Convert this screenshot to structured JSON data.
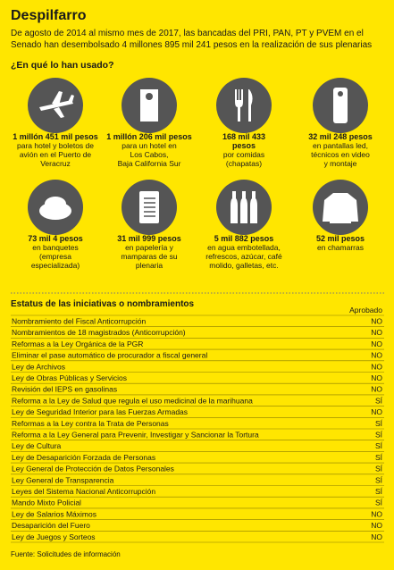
{
  "header": {
    "title": "Despilfarro",
    "subtitle_lines": [
      "De agosto de 2014 al mismo mes de 2017, las bancadas del PRI, PAN, PT y PVEM en el",
      "Senado han desembolsado 4 millones 895 mil 241 pesos en la realización de sus plenarias"
    ]
  },
  "spending": {
    "heading": "¿En qué lo han usado?",
    "items": [
      {
        "amount_lines": [
          "1 millón 451 mil pesos"
        ],
        "description_lines": [
          "para hotel y boletos de",
          "avión en el Puerto de",
          "Veracruz"
        ]
      },
      {
        "amount_lines": [
          "1 millón 206 mil pesos"
        ],
        "description_lines": [
          "para un hotel en",
          "Los Cabos,",
          "Baja California Sur"
        ]
      },
      {
        "amount_lines": [
          "168 mil 433",
          "pesos"
        ],
        "description_lines": [
          "por comidas",
          "(chapatas)"
        ]
      },
      {
        "amount_lines": [
          "32 mil 248 pesos"
        ],
        "description_lines": [
          "en pantallas led,",
          "técnicos en video",
          "y montaje"
        ]
      },
      {
        "amount_lines": [
          "73 mil 4 pesos"
        ],
        "description_lines": [
          "en banquetes",
          "(empresa",
          "especializada)"
        ]
      },
      {
        "amount_lines": [
          "31 mil 999 pesos"
        ],
        "description_lines": [
          "en papelería y",
          "mamparas de su",
          "plenaria"
        ]
      },
      {
        "amount_lines": [
          "5 mil 882 pesos"
        ],
        "description_lines": [
          "en agua embotellada,",
          "refrescos, azúcar, café",
          "molido, galletas, etc."
        ]
      },
      {
        "amount_lines": [
          "52 mil pesos"
        ],
        "description_lines": [
          "en chamarras"
        ]
      }
    ]
  },
  "table": {
    "heading": "Estatus de las iniciativas o nombramientos",
    "column": "Aprobado",
    "rows": [
      [
        "Nombramiento del Fiscal Anticorrupción",
        "NO"
      ],
      [
        "Nombramientos de 18 magistrados (Anticorrupción)",
        "NO"
      ],
      [
        "Reformas a la Ley Orgánica de la PGR",
        "NO"
      ],
      [
        "Eliminar el pase automático de procurador a fiscal general",
        "NO"
      ],
      [
        "Ley de Archivos",
        "NO"
      ],
      [
        "Ley de Obras Públicas y Servicios",
        "NO"
      ],
      [
        "Revisión del IEPS en gasolinas",
        "NO"
      ],
      [
        "Reforma a la Ley de Salud que regula el uso medicinal de la marihuana",
        "SÍ"
      ],
      [
        "Ley de Seguridad Interior para las Fuerzas Armadas",
        "NO"
      ],
      [
        "Reformas a la Ley contra la Trata de Personas",
        "SÍ"
      ],
      [
        "Reforma a la Ley General para Prevenir, Investigar y Sancionar la Tortura",
        "SÍ"
      ],
      [
        "Ley de Cultura",
        "SÍ"
      ],
      [
        "Ley de Desaparición Forzada de Personas",
        "SÍ"
      ],
      [
        "Ley General de Protección de Datos Personales",
        "SÍ"
      ],
      [
        "Ley General de Transparencia",
        "SÍ"
      ],
      [
        "Leyes del Sistema Nacional Anticorrupción",
        "SÍ"
      ],
      [
        "Mando Mixto Policial",
        "SÍ"
      ],
      [
        "Ley de Salarios Máximos",
        "NO"
      ],
      [
        "Desaparición del Fuero",
        "NO"
      ],
      [
        "Ley de Juegos y Sorteos",
        "NO"
      ]
    ]
  },
  "source": "Fuente: Solicitudes de información"
}
